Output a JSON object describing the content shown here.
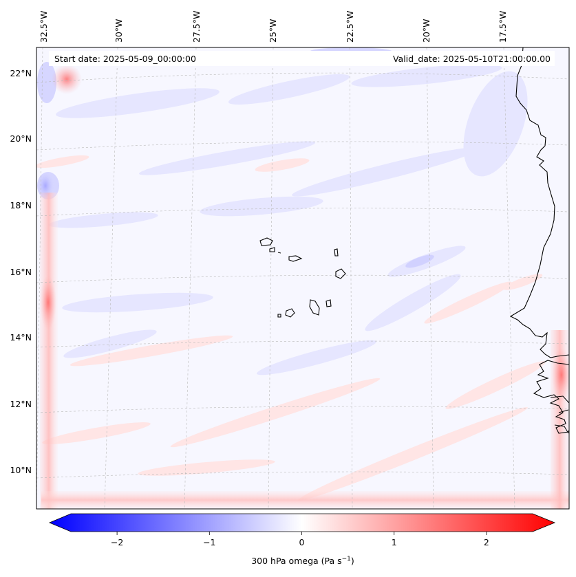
{
  "map": {
    "start_date": "Start date: 2025-05-09_00:00:00",
    "valid_date": "Valid_date: 2025-05-10T21:00:00.00",
    "lon_labels": [
      "32.5°W",
      "30°W",
      "27.5°W",
      "25°W",
      "22.5°W",
      "20°W",
      "17.5°W"
    ],
    "lat_labels": [
      "22°N",
      "20°N",
      "18°N",
      "16°N",
      "14°N",
      "12°N",
      "10°N"
    ]
  },
  "colorbar": {
    "label": "300 hPa omega (Pa s",
    "label_unit_exponent": "−1",
    "label_close": ")",
    "ticks": [
      "−2",
      "−1",
      "0",
      "1",
      "2"
    ],
    "tick_values": [
      -2,
      -1,
      0,
      1,
      2
    ],
    "range": [
      -2.5,
      2.5
    ],
    "colormap": "bwr"
  },
  "colors": {
    "negative": "#0000ff",
    "zero": "#ffffff",
    "positive": "#ff0000",
    "coastline": "#000000"
  }
}
